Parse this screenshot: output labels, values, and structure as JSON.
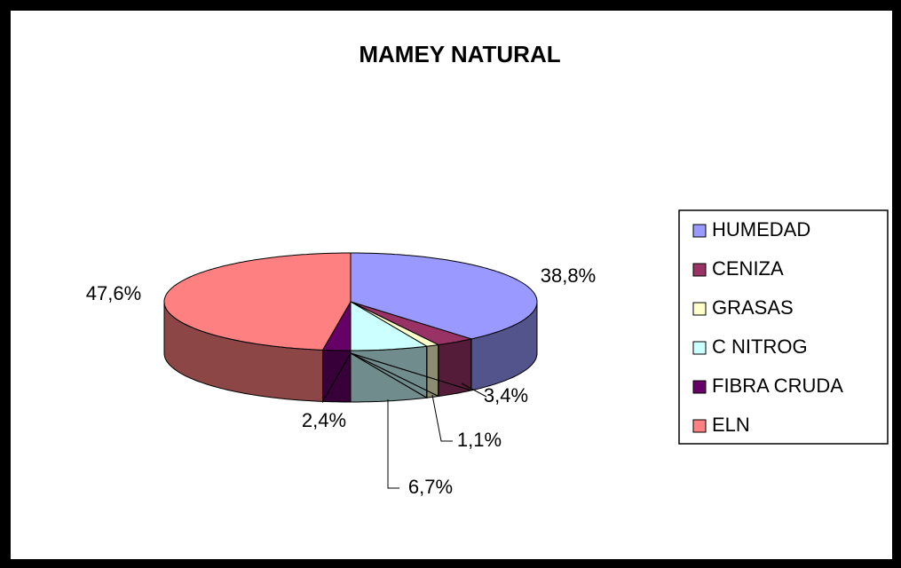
{
  "chart_data": {
    "type": "pie3d",
    "title": "MAMEY NATURAL",
    "categories": [
      "HUMEDAD",
      "CENIZA",
      "GRASAS",
      "C NITROG",
      "FIBRA CRUDA",
      "ELN"
    ],
    "values": [
      38.8,
      3.4,
      1.1,
      6.7,
      2.4,
      47.6
    ],
    "value_labels": [
      "38,8%",
      "3,4%",
      "1,1%",
      "6,7%",
      "2,4%",
      "47,6%"
    ],
    "colors": [
      "#9999ff",
      "#993366",
      "#ffffcc",
      "#ccffff",
      "#660066",
      "#ff8080"
    ],
    "legend": "right"
  }
}
